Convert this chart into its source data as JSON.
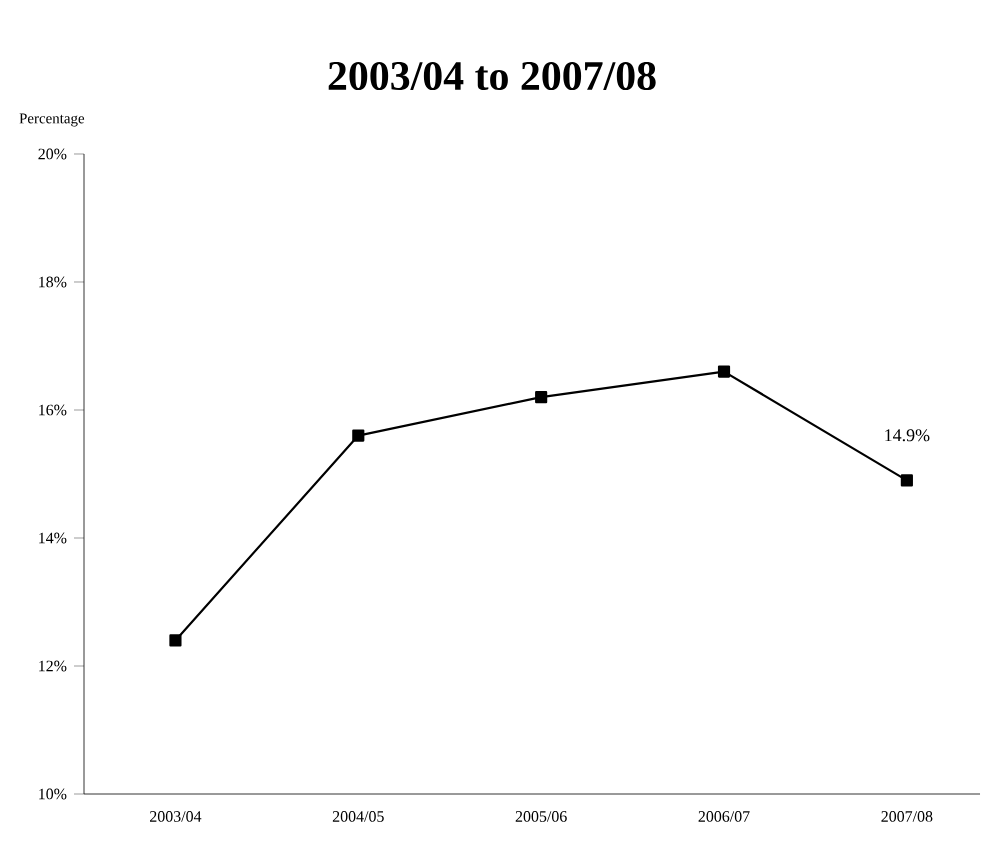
{
  "chart_data": {
    "type": "line",
    "title": "2003/04 to 2007/08",
    "ylabel": "Percentage",
    "categories": [
      "2003/04",
      "2004/05",
      "2005/06",
      "2006/07",
      "2007/08"
    ],
    "values": [
      12.4,
      15.6,
      16.2,
      16.6,
      14.9
    ],
    "value_labels": [
      null,
      null,
      null,
      null,
      "14.9%"
    ],
    "color": "#000000",
    "marker": "square",
    "line_style": "solid",
    "ylim": [
      10,
      20
    ],
    "yticks": [
      {
        "value": 10,
        "label": "10%"
      },
      {
        "value": 12,
        "label": "12%"
      },
      {
        "value": 14,
        "label": "14%"
      },
      {
        "value": 16,
        "label": "16%"
      },
      {
        "value": 18,
        "label": "18%"
      },
      {
        "value": 20,
        "label": "20%"
      }
    ],
    "grid": false
  }
}
